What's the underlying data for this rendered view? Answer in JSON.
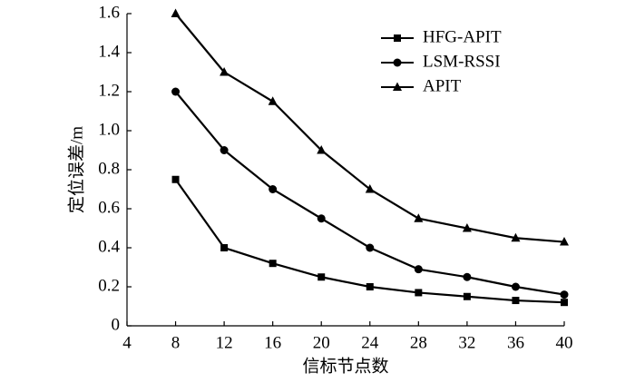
{
  "chart_data": {
    "type": "line",
    "xlabel": "信标节点数",
    "ylabel": "定位误差/m",
    "x": [
      8,
      12,
      16,
      20,
      24,
      28,
      32,
      36,
      40
    ],
    "series": [
      {
        "name": "HFG-APIT",
        "color": "#000000",
        "marker": "square",
        "values": [
          0.75,
          0.4,
          0.32,
          0.25,
          0.2,
          0.17,
          0.15,
          0.13,
          0.12
        ]
      },
      {
        "name": "LSM-RSSI",
        "color": "#000000",
        "marker": "circle",
        "values": [
          1.2,
          0.9,
          0.7,
          0.55,
          0.4,
          0.29,
          0.25,
          0.2,
          0.16
        ]
      },
      {
        "name": "APIT",
        "color": "#000000",
        "marker": "triangle",
        "values": [
          1.6,
          1.3,
          1.15,
          0.9,
          0.7,
          0.55,
          0.5,
          0.45,
          0.43
        ]
      }
    ],
    "xlim": [
      4,
      40
    ],
    "xticks": [
      4,
      8,
      12,
      16,
      20,
      24,
      28,
      32,
      36,
      40
    ],
    "ylim": [
      0,
      1.6
    ],
    "yticks": [
      0,
      0.2,
      0.4,
      0.6,
      0.8,
      {
        "value": 1,
        "label": "1.0"
      },
      1.2,
      1.4,
      1.6
    ],
    "legend": "upper right",
    "grid": false
  }
}
